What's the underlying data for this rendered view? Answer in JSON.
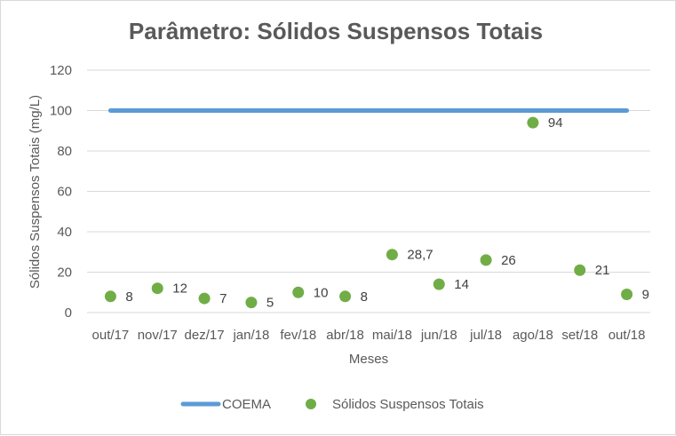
{
  "chart_data": {
    "type": "scatter",
    "title": "Parâmetro: Sólidos Suspensos Totais",
    "xlabel": "Meses",
    "ylabel": "Sólidos Suspensos Totais (mg/L)",
    "ylim": [
      0,
      120
    ],
    "yticks": [
      "0",
      "20",
      "40",
      "60",
      "80",
      "100",
      "120"
    ],
    "grid": "horizontal",
    "legend_position": "bottom",
    "categories": [
      "out/17",
      "nov/17",
      "dez/17",
      "jan/18",
      "fev/18",
      "abr/18",
      "mai/18",
      "jun/18",
      "jul/18",
      "ago/18",
      "set/18",
      "out/18"
    ],
    "series": [
      {
        "name": "COEMA",
        "type": "line",
        "color": "#5b9bd5",
        "values": [
          100,
          100,
          100,
          100,
          100,
          100,
          100,
          100,
          100,
          100,
          100,
          100
        ]
      },
      {
        "name": "Sólidos Suspensos Totais",
        "type": "scatter",
        "color": "#70ad47",
        "values": [
          8,
          12,
          7,
          5,
          10,
          8,
          28.7,
          14,
          26,
          94,
          21,
          9
        ],
        "labels": [
          "8",
          "12",
          "7",
          "5",
          "10",
          "8",
          "28,7",
          "14",
          "26",
          "94",
          "21",
          "9"
        ]
      }
    ]
  }
}
